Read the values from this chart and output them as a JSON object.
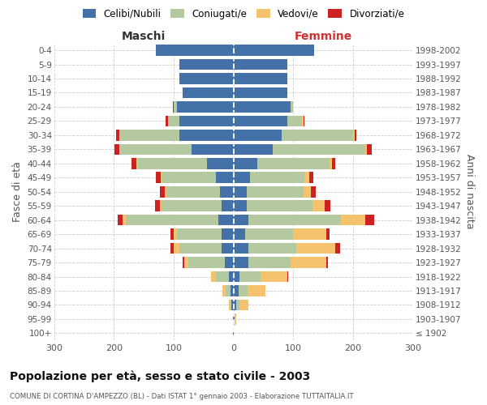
{
  "age_groups": [
    "100+",
    "95-99",
    "90-94",
    "85-89",
    "80-84",
    "75-79",
    "70-74",
    "65-69",
    "60-64",
    "55-59",
    "50-54",
    "45-49",
    "40-44",
    "35-39",
    "30-34",
    "25-29",
    "20-24",
    "15-19",
    "10-14",
    "5-9",
    "0-4"
  ],
  "birth_years": [
    "≤ 1902",
    "1903-1907",
    "1908-1912",
    "1913-1917",
    "1918-1922",
    "1923-1927",
    "1928-1932",
    "1933-1937",
    "1938-1942",
    "1943-1947",
    "1948-1952",
    "1953-1957",
    "1958-1962",
    "1963-1967",
    "1968-1972",
    "1973-1977",
    "1978-1982",
    "1983-1987",
    "1988-1992",
    "1993-1997",
    "1998-2002"
  ],
  "maschi_celibe": [
    1,
    1,
    3,
    5,
    8,
    15,
    20,
    20,
    25,
    20,
    22,
    30,
    45,
    70,
    90,
    90,
    95,
    85,
    90,
    90,
    130
  ],
  "maschi_coniugato": [
    0,
    0,
    2,
    8,
    22,
    60,
    70,
    75,
    155,
    100,
    90,
    90,
    115,
    120,
    100,
    20,
    5,
    0,
    0,
    0,
    0
  ],
  "maschi_vedovo": [
    0,
    0,
    3,
    5,
    8,
    8,
    10,
    5,
    5,
    3,
    3,
    2,
    2,
    1,
    1,
    0,
    0,
    0,
    0,
    0,
    0
  ],
  "maschi_divorziato": [
    0,
    0,
    0,
    0,
    0,
    2,
    5,
    5,
    8,
    8,
    8,
    8,
    8,
    8,
    5,
    3,
    1,
    0,
    0,
    0,
    0
  ],
  "femmine_celibe": [
    1,
    2,
    5,
    8,
    10,
    25,
    25,
    20,
    25,
    22,
    22,
    28,
    40,
    65,
    80,
    90,
    95,
    90,
    90,
    90,
    135
  ],
  "femmine_coniugata": [
    0,
    0,
    5,
    15,
    35,
    70,
    80,
    80,
    155,
    110,
    95,
    90,
    120,
    155,
    120,
    25,
    5,
    0,
    0,
    0,
    0
  ],
  "femmine_vedova": [
    0,
    3,
    15,
    30,
    45,
    60,
    65,
    55,
    40,
    20,
    12,
    8,
    5,
    3,
    2,
    2,
    0,
    0,
    0,
    0,
    0
  ],
  "femmine_divorziata": [
    0,
    0,
    0,
    0,
    1,
    3,
    8,
    5,
    15,
    10,
    8,
    8,
    5,
    8,
    3,
    1,
    0,
    0,
    0,
    0,
    0
  ],
  "color_celibe": "#4472a8",
  "color_coniugato": "#b5c9a0",
  "color_vedovo": "#f5c36e",
  "color_divorziato": "#cc2222",
  "title": "Popolazione per età, sesso e stato civile - 2003",
  "subtitle": "COMUNE DI CORTINA D'AMPEZZO (BL) - Dati ISTAT 1° gennaio 2003 - Elaborazione TUTTAITALIA.IT",
  "label_maschi": "Maschi",
  "label_femmine": "Femmine",
  "ylabel_left": "Fasce di età",
  "ylabel_right": "Anni di nascita",
  "xlim": 300,
  "bg_color": "#ffffff",
  "grid_color": "#cccccc"
}
